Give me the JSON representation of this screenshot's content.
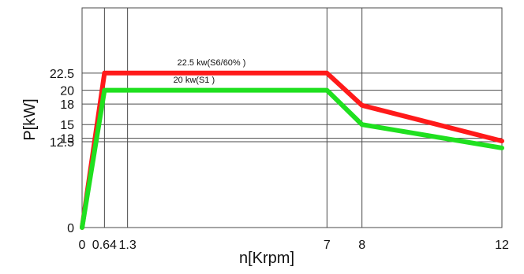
{
  "chart_data": {
    "type": "line",
    "xlabel": "n[Krpm]",
    "ylabel": "P[kW]",
    "xlim": [
      0,
      12
    ],
    "ylim": [
      0,
      32
    ],
    "x_ticks": [
      0,
      0.64,
      1.3,
      7,
      8,
      12
    ],
    "x_tick_labels": [
      "0",
      "0.64",
      "1.3",
      "7",
      "8",
      "12"
    ],
    "y_ticks": [
      0,
      12.5,
      13,
      15,
      18,
      20,
      22.5
    ],
    "y_tick_labels": [
      "0",
      "12.5",
      "13",
      "15",
      "18",
      "20",
      "22.5"
    ],
    "grid": true,
    "series": [
      {
        "color": "#ff1a1a",
        "x": [
          0,
          0.64,
          7,
          8,
          12
        ],
        "y": [
          0,
          22.5,
          22.5,
          17.8,
          12.6
        ]
      },
      {
        "color": "#1fe01f",
        "x": [
          0,
          0.64,
          7,
          8,
          12
        ],
        "y": [
          0,
          20,
          20,
          15,
          11.6
        ]
      }
    ],
    "annotations": [
      {
        "text": "22.5 kw(S6/60% )",
        "x": 3.7,
        "y": 23.6
      },
      {
        "text": "20 kw(S1 )",
        "x": 3.2,
        "y": 21.1
      }
    ]
  }
}
